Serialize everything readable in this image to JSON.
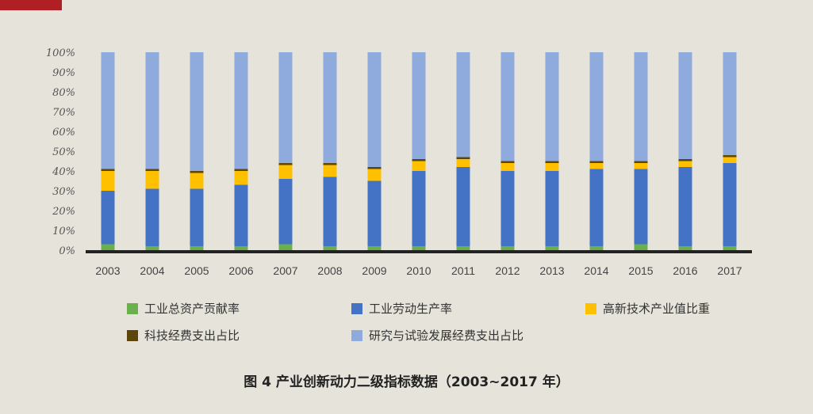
{
  "chart_data": {
    "type": "bar",
    "stacked": true,
    "categories": [
      "2003",
      "2004",
      "2005",
      "2006",
      "2007",
      "2008",
      "2009",
      "2010",
      "2011",
      "2012",
      "2013",
      "2014",
      "2015",
      "2016",
      "2017"
    ],
    "ylim": [
      0,
      100
    ],
    "yticks": [
      "0%",
      "10%",
      "20%",
      "30%",
      "40%",
      "50%",
      "60%",
      "70%",
      "80%",
      "90%",
      "100%"
    ],
    "series": [
      {
        "name": "工业总资产贡献率",
        "color": "#6ab04c",
        "values": [
          3,
          2,
          2,
          2,
          3,
          2,
          2,
          2,
          2,
          2,
          2,
          2,
          3,
          2,
          2
        ]
      },
      {
        "name": "工业劳动生产率",
        "color": "#4472c4",
        "values": [
          27,
          29,
          29,
          31,
          33,
          35,
          33,
          38,
          40,
          38,
          38,
          39,
          38,
          40,
          42
        ]
      },
      {
        "name": "高新技术产业值比重",
        "color": "#ffc000",
        "values": [
          10,
          9,
          8,
          7,
          7,
          6,
          6,
          5,
          4,
          4,
          4,
          3,
          3,
          3,
          3
        ]
      },
      {
        "name": "科技经费支出占比",
        "color": "#5c4609",
        "values": [
          1,
          1,
          1,
          1,
          1,
          1,
          1,
          1,
          1,
          1,
          1,
          1,
          1,
          1,
          1
        ]
      },
      {
        "name": "研究与试验发展经费支出占比",
        "color": "#8faadc",
        "values": [
          59,
          59,
          60,
          59,
          56,
          56,
          58,
          54,
          53,
          55,
          55,
          55,
          55,
          54,
          52
        ]
      }
    ]
  },
  "caption": "图 4  产业创新动力二级指标数据（2003~2017 年）"
}
